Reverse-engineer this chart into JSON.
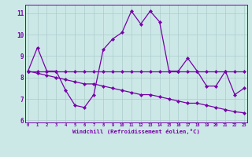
{
  "title": "Windchill (Refroidissement éolien,°C)",
  "background_color": "#cce8e6",
  "line_color": "#7700aa",
  "grid_color": "#aacccc",
  "x_values": [
    0,
    1,
    2,
    3,
    4,
    5,
    6,
    7,
    8,
    9,
    10,
    11,
    12,
    13,
    14,
    15,
    16,
    17,
    18,
    19,
    20,
    21,
    22,
    23
  ],
  "line1": [
    8.3,
    9.4,
    8.3,
    8.3,
    7.4,
    6.7,
    6.6,
    7.2,
    9.3,
    9.8,
    10.1,
    11.1,
    10.5,
    11.1,
    10.6,
    8.3,
    8.3,
    8.9,
    8.3,
    7.6,
    7.6,
    8.3,
    7.2,
    7.5
  ],
  "line2": [
    8.3,
    8.3,
    8.3,
    8.3,
    8.3,
    8.3,
    8.3,
    8.3,
    8.3,
    8.3,
    8.3,
    8.3,
    8.3,
    8.3,
    8.3,
    8.3,
    8.3,
    8.3,
    8.3,
    8.3,
    8.3,
    8.3,
    8.3,
    8.3
  ],
  "line3": [
    8.3,
    8.2,
    8.1,
    8.0,
    7.9,
    7.8,
    7.7,
    7.7,
    7.6,
    7.5,
    7.4,
    7.3,
    7.2,
    7.2,
    7.1,
    7.0,
    6.9,
    6.8,
    6.8,
    6.7,
    6.6,
    6.5,
    6.4,
    6.35
  ],
  "ylim": [
    5.9,
    11.4
  ],
  "yticks": [
    6,
    7,
    8,
    9,
    10,
    11
  ],
  "xlim": [
    -0.3,
    23.3
  ]
}
